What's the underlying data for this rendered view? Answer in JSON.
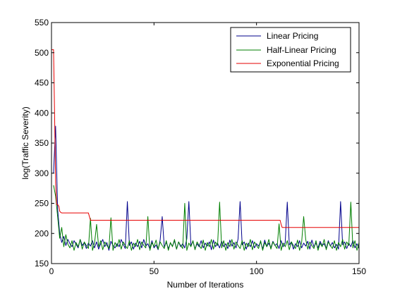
{
  "chart_data": {
    "type": "line",
    "title": "",
    "xlabel": "Number of Iterations",
    "ylabel": "log(Traffic Severity)",
    "xlim": [
      0,
      150
    ],
    "ylim": [
      150,
      550
    ],
    "x_ticks": [
      "0",
      "50",
      "100",
      "150"
    ],
    "y_ticks": [
      "150",
      "200",
      "250",
      "300",
      "350",
      "400",
      "450",
      "500",
      "550"
    ],
    "grid": false,
    "legend_position": "top-right",
    "series": [
      {
        "name": "Linear Pricing",
        "color": "#00008b",
        "x": [
          1,
          2,
          3,
          4,
          5,
          6,
          7,
          8,
          9,
          10,
          11,
          12,
          13,
          14,
          15,
          16,
          17,
          18,
          19,
          20,
          21,
          22,
          23,
          24,
          25,
          26,
          27,
          28,
          29,
          30,
          31,
          32,
          33,
          34,
          35,
          36,
          37,
          38,
          39,
          40,
          41,
          42,
          43,
          44,
          45,
          46,
          47,
          48,
          49,
          50,
          51,
          52,
          53,
          54,
          55,
          56,
          57,
          58,
          59,
          60,
          61,
          62,
          63,
          64,
          65,
          66,
          67,
          68,
          69,
          70,
          71,
          72,
          73,
          74,
          75,
          76,
          77,
          78,
          79,
          80,
          81,
          82,
          83,
          84,
          85,
          86,
          87,
          88,
          89,
          90,
          91,
          92,
          93,
          94,
          95,
          96,
          97,
          98,
          99,
          100,
          101,
          102,
          103,
          104,
          105,
          106,
          107,
          108,
          109,
          110,
          111,
          112,
          113,
          114,
          115,
          116,
          117,
          118,
          119,
          120,
          121,
          122,
          123,
          124,
          125,
          126,
          127,
          128,
          129,
          130,
          131,
          132,
          133,
          134,
          135,
          136,
          137,
          138,
          139,
          140,
          141,
          142,
          143,
          144,
          145,
          146,
          147,
          148,
          149,
          150
        ],
        "y": [
          300,
          378,
          240,
          200,
          185,
          195,
          180,
          190,
          183,
          178,
          188,
          182,
          176,
          190,
          180,
          185,
          175,
          184,
          179,
          188,
          176,
          186,
          174,
          183,
          190,
          178,
          185,
          172,
          187,
          180,
          176,
          183,
          178,
          190,
          182,
          175,
          253,
          180,
          186,
          174,
          184,
          178,
          187,
          176,
          190,
          179,
          183,
          174,
          188,
          176,
          181,
          173,
          189,
          228,
          178,
          185,
          175,
          184,
          179,
          188,
          174,
          186,
          178,
          183,
          176,
          191,
          253,
          180,
          187,
          174,
          183,
          178,
          188,
          176,
          184,
          179,
          186,
          173,
          189,
          178,
          184,
          176,
          187,
          178,
          183,
          175,
          189,
          179,
          185,
          176,
          191,
          253,
          181,
          186,
          174,
          184,
          178,
          188,
          176,
          183,
          179,
          186,
          174,
          189,
          178,
          184,
          176,
          187,
          180,
          183,
          175,
          188,
          178,
          185,
          252,
          181,
          186,
          174,
          183,
          178,
          188,
          176,
          184,
          179,
          187,
          174,
          189,
          178,
          184,
          176,
          187,
          180,
          183,
          175,
          188,
          179,
          185,
          176,
          182,
          174,
          253,
          181,
          186,
          175,
          184,
          178,
          188,
          176,
          183,
          175
        ]
      },
      {
        "name": "Half-Linear Pricing",
        "color": "#007f00",
        "x": [
          1,
          2,
          3,
          4,
          5,
          6,
          7,
          8,
          9,
          10,
          11,
          12,
          13,
          14,
          15,
          16,
          17,
          18,
          19,
          20,
          21,
          22,
          23,
          24,
          25,
          26,
          27,
          28,
          29,
          30,
          31,
          32,
          33,
          34,
          35,
          36,
          37,
          38,
          39,
          40,
          41,
          42,
          43,
          44,
          45,
          46,
          47,
          48,
          49,
          50,
          51,
          52,
          53,
          54,
          55,
          56,
          57,
          58,
          59,
          60,
          61,
          62,
          63,
          64,
          65,
          66,
          67,
          68,
          69,
          70,
          71,
          72,
          73,
          74,
          75,
          76,
          77,
          78,
          79,
          80,
          81,
          82,
          83,
          84,
          85,
          86,
          87,
          88,
          89,
          90,
          91,
          92,
          93,
          94,
          95,
          96,
          97,
          98,
          99,
          100,
          101,
          102,
          103,
          104,
          105,
          106,
          107,
          108,
          109,
          110,
          111,
          112,
          113,
          114,
          115,
          116,
          117,
          118,
          119,
          120,
          121,
          122,
          123,
          124,
          125,
          126,
          127,
          128,
          129,
          130,
          131,
          132,
          133,
          134,
          135,
          136,
          137,
          138,
          139,
          140,
          141,
          142,
          143,
          144,
          145,
          146,
          147,
          148,
          149,
          150
        ],
        "y": [
          280,
          262,
          228,
          192,
          210,
          178,
          198,
          182,
          176,
          188,
          172,
          185,
          178,
          190,
          174,
          186,
          180,
          175,
          225,
          172,
          184,
          215,
          178,
          188,
          173,
          186,
          180,
          175,
          226,
          172,
          185,
          178,
          190,
          174,
          186,
          180,
          175,
          188,
          172,
          184,
          178,
          190,
          173,
          186,
          180,
          176,
          228,
          172,
          185,
          178,
          189,
          174,
          186,
          180,
          175,
          188,
          172,
          185,
          178,
          190,
          174,
          186,
          180,
          175,
          250,
          172,
          184,
          178,
          188,
          173,
          186,
          180,
          175,
          189,
          172,
          185,
          178,
          190,
          174,
          186,
          180,
          252,
          176,
          188,
          172,
          185,
          178,
          190,
          174,
          186,
          180,
          175,
          188,
          172,
          184,
          178,
          190,
          173,
          186,
          180,
          175,
          188,
          172,
          185,
          178,
          190,
          174,
          186,
          180,
          175,
          216,
          172,
          184,
          178,
          188,
          173,
          186,
          180,
          175,
          189,
          172,
          185,
          228,
          190,
          174,
          186,
          180,
          175,
          188,
          172,
          184,
          178,
          190,
          173,
          186,
          180,
          175,
          188,
          172,
          185,
          178,
          190,
          174,
          186,
          180,
          252,
          176,
          188,
          172,
          185
        ]
      },
      {
        "name": "Exponential Pricing",
        "color": "#e60000",
        "x": [
          0.2,
          1,
          1.5,
          2,
          2.5,
          3,
          3.6,
          4,
          4.5,
          5,
          18,
          18.5,
          19,
          111.5,
          112,
          112.5,
          150
        ],
        "y": [
          505,
          505,
          400,
          285,
          248,
          248,
          245,
          237,
          235,
          234,
          234,
          228,
          222,
          222,
          215,
          210,
          210
        ]
      }
    ]
  }
}
